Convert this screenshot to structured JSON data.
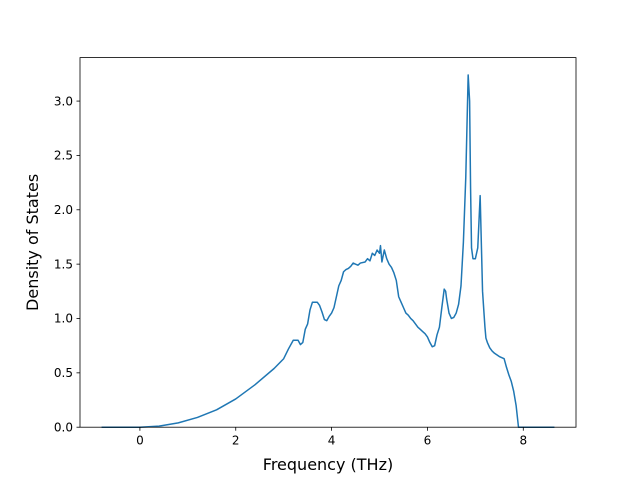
{
  "chart_data": {
    "type": "line",
    "title": "",
    "xlabel": "Frequency (THz)",
    "ylabel": "Density of States",
    "xlim": [
      -1.25,
      9.1
    ],
    "ylim": [
      0.0,
      3.4
    ],
    "xticks": [
      0,
      2,
      4,
      6,
      8
    ],
    "yticks": [
      0.0,
      0.5,
      1.0,
      1.5,
      2.0,
      2.5,
      3.0
    ],
    "xtick_labels": [
      "0",
      "2",
      "4",
      "6",
      "8"
    ],
    "ytick_labels": [
      "0.0",
      "0.5",
      "1.0",
      "1.5",
      "2.0",
      "2.5",
      "3.0"
    ],
    "grid": false,
    "legend": "none",
    "series": [
      {
        "color": "#1f77b4",
        "x": [
          -0.8,
          -0.4,
          0.0,
          0.4,
          0.8,
          1.2,
          1.6,
          2.0,
          2.4,
          2.8,
          3.0,
          3.1,
          3.2,
          3.3,
          3.35,
          3.4,
          3.45,
          3.5,
          3.55,
          3.6,
          3.7,
          3.75,
          3.8,
          3.85,
          3.9,
          3.95,
          4.0,
          4.05,
          4.1,
          4.15,
          4.2,
          4.25,
          4.3,
          4.35,
          4.4,
          4.45,
          4.5,
          4.55,
          4.6,
          4.7,
          4.75,
          4.8,
          4.85,
          4.9,
          4.95,
          5.0,
          5.02,
          5.05,
          5.1,
          5.15,
          5.2,
          5.25,
          5.3,
          5.35,
          5.4,
          5.45,
          5.5,
          5.55,
          5.6,
          5.65,
          5.7,
          5.75,
          5.8,
          5.85,
          5.9,
          5.95,
          6.0,
          6.05,
          6.1,
          6.15,
          6.2,
          6.25,
          6.3,
          6.35,
          6.38,
          6.4,
          6.45,
          6.5,
          6.55,
          6.6,
          6.65,
          6.7,
          6.75,
          6.8,
          6.85,
          6.88,
          6.9,
          6.92,
          6.95,
          7.0,
          7.05,
          7.1,
          7.15,
          7.18,
          7.2,
          7.22,
          7.25,
          7.3,
          7.35,
          7.4,
          7.5,
          7.6,
          7.65,
          7.7,
          7.75,
          7.8,
          7.85,
          7.9,
          8.0,
          8.4,
          8.65
        ],
        "y": [
          0.0,
          0.0,
          0.0,
          0.01,
          0.04,
          0.09,
          0.16,
          0.26,
          0.39,
          0.54,
          0.63,
          0.72,
          0.8,
          0.8,
          0.76,
          0.78,
          0.9,
          0.95,
          1.08,
          1.15,
          1.15,
          1.12,
          1.06,
          0.99,
          0.98,
          1.02,
          1.05,
          1.1,
          1.2,
          1.3,
          1.35,
          1.43,
          1.45,
          1.46,
          1.48,
          1.51,
          1.5,
          1.49,
          1.51,
          1.52,
          1.55,
          1.53,
          1.6,
          1.58,
          1.63,
          1.6,
          1.67,
          1.52,
          1.63,
          1.55,
          1.5,
          1.47,
          1.42,
          1.35,
          1.2,
          1.15,
          1.1,
          1.05,
          1.03,
          1.0,
          0.98,
          0.95,
          0.92,
          0.9,
          0.88,
          0.86,
          0.83,
          0.78,
          0.74,
          0.75,
          0.85,
          0.92,
          1.1,
          1.27,
          1.25,
          1.18,
          1.05,
          1.0,
          1.01,
          1.05,
          1.13,
          1.3,
          1.7,
          2.3,
          3.24,
          3.0,
          2.2,
          1.65,
          1.55,
          1.55,
          1.65,
          2.13,
          1.25,
          1.05,
          0.92,
          0.82,
          0.78,
          0.73,
          0.7,
          0.68,
          0.65,
          0.63,
          0.55,
          0.48,
          0.42,
          0.33,
          0.2,
          0.0,
          0.0,
          0.0,
          0.0
        ]
      }
    ]
  }
}
